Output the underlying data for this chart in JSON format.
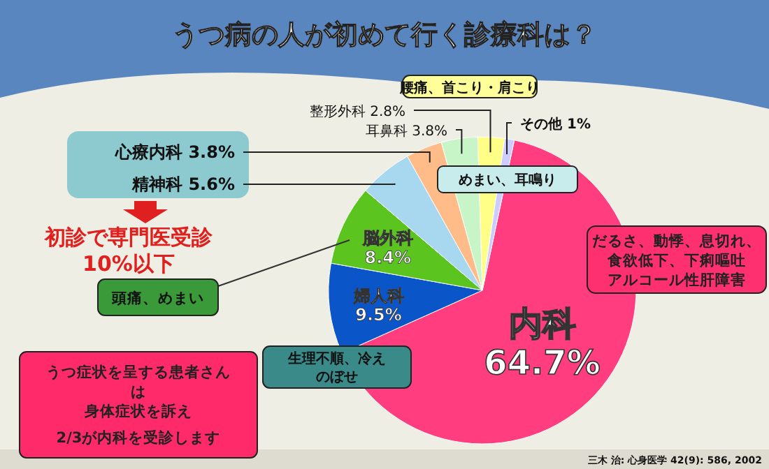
{
  "chart_data": {
    "type": "pie",
    "title": "うつ病の人が初めて行く診療科は？",
    "categories": [
      "内科",
      "婦人科",
      "脳外科",
      "精神科",
      "心療内科",
      "耳鼻科",
      "整形外科",
      "その他"
    ],
    "values": [
      64.7,
      9.5,
      8.4,
      5.6,
      3.8,
      3.8,
      2.8,
      1
    ],
    "value_labels": [
      "64.7%",
      "9.5%",
      "8.4%",
      "5.6%",
      "3.8%",
      "3.8%",
      "2.8%",
      "1%"
    ],
    "colors": [
      "#ff3d7f",
      "#0a55c8",
      "#5cc41e",
      "#a8d8f0",
      "#ffbb88",
      "#c8f5c8",
      "#ffff88",
      "#ccccff"
    ],
    "annotations": [
      "腰痛、首こり・肩こり",
      "めまい、耳鳴り",
      "だるさ、動悸、息切れ、",
      "食欲低下、下痢嘔吐",
      "アルコール性肝障害",
      "初診で専門医受診",
      "10%以下",
      "頭痛、めまい",
      "生理不順、冷え",
      "のぼせ",
      "うつ症状を呈する患者さん",
      "は",
      "身体症状を訴え",
      "2/3が内科を受診します",
      "三木 治: 心身医学 42(9): 586, 2002"
    ]
  }
}
